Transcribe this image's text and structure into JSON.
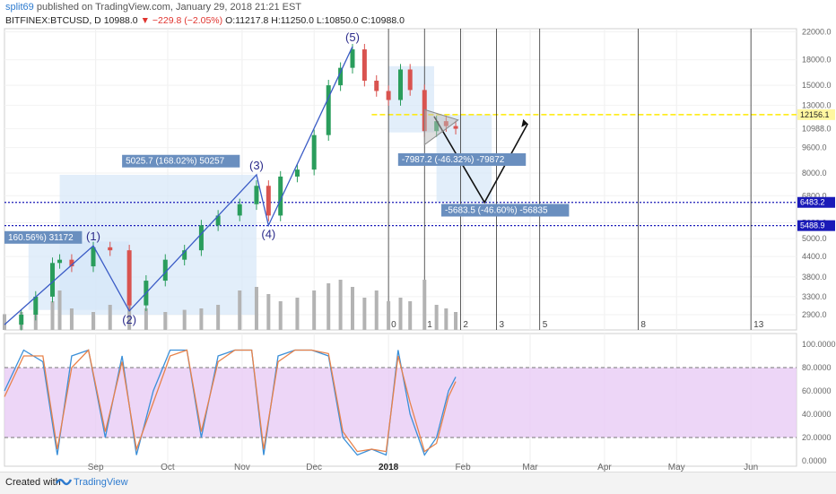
{
  "header": {
    "username": "split69",
    "published": "published on TradingView.com, January 29, 2018 21:21 EST",
    "symbol": "BITFINEX:BTCUSD, D",
    "last": "10988.0",
    "change": "−229.8 (−2.05%)",
    "ohlc": "O:11217.8 H:11250.0 L:10850.0 C:10988.0"
  },
  "footer": {
    "created_with": "Created with",
    "brand": "TradingView"
  },
  "colors": {
    "candle_up": "#2a9d5c",
    "candle_down": "#d9534f",
    "volume": "#b3b3b3",
    "wave": "#3a5bc6",
    "zone_fill": "#d6e7f8",
    "highlight_yellow": "#ffea00",
    "stoch_k": "#3a8fd8",
    "stoch_d": "#e8824a",
    "stoch_band": "#e8ccf5",
    "label_bg": "#6a8fbf",
    "level_line": "#1a1ab8"
  },
  "chart_data": [
    {
      "type": "line",
      "title": "",
      "y_scale": "log",
      "ylim": [
        2600,
        22500
      ],
      "price_axis_ticks": [
        "22000.0",
        "18000.0",
        "15000.0",
        "13000.0",
        "10988.0",
        "9600.0",
        "8000.0",
        "6800.0",
        "5600.0",
        "5000.0",
        "4400.0",
        "3800.0",
        "3300.0",
        "2900.0"
      ],
      "x_axis_ticks": [
        "Sep",
        "Oct",
        "Nov",
        "Dec",
        "2018",
        "Feb",
        "Mar",
        "Apr",
        "May",
        "Jun"
      ],
      "series": [
        {
          "kind": "close",
          "x": [
            "2017-07-25",
            "2017-08-01",
            "2017-08-07",
            "2017-08-14",
            "2017-08-17",
            "2017-08-22",
            "2017-08-31",
            "2017-09-07",
            "2017-09-15",
            "2017-09-22",
            "2017-09-30",
            "2017-10-08",
            "2017-10-15",
            "2017-10-22",
            "2017-10-31",
            "2017-11-07",
            "2017-11-12",
            "2017-11-17",
            "2017-11-24",
            "2017-12-01",
            "2017-12-07",
            "2017-12-12",
            "2017-12-17",
            "2017-12-22",
            "2017-12-27",
            "2018-01-01",
            "2018-01-06",
            "2018-01-10",
            "2018-01-16",
            "2018-01-21",
            "2018-01-25",
            "2018-01-29"
          ],
          "values": [
            2700,
            2900,
            3300,
            4200,
            4300,
            4100,
            4700,
            4600,
            3100,
            3700,
            4300,
            4600,
            5500,
            5900,
            6400,
            7300,
            5900,
            7800,
            8200,
            10500,
            15000,
            17000,
            19400,
            15500,
            14400,
            13500,
            16800,
            14500,
            10800,
            11600,
            11200,
            10988
          ]
        }
      ],
      "volume_relative": [
        0.22,
        0.25,
        0.28,
        0.4,
        0.55,
        0.3,
        0.25,
        0.35,
        0.45,
        0.3,
        0.25,
        0.28,
        0.3,
        0.35,
        0.55,
        0.6,
        0.5,
        0.4,
        0.45,
        0.55,
        0.65,
        0.7,
        0.6,
        0.45,
        0.55,
        0.4,
        0.45,
        0.4,
        0.7,
        0.35,
        0.3,
        0.25
      ],
      "levels": [
        {
          "value": 12156.1,
          "label": "12156.1",
          "style": "yellow"
        },
        {
          "value": 6483.2,
          "label": "6483.2",
          "style": "blue-dotted"
        },
        {
          "value": 5488.9,
          "label": "5488.9",
          "style": "blue-dotted"
        }
      ],
      "wave_labels": [
        {
          "label": "(1)",
          "date": "2017-08-31",
          "price": 4750
        },
        {
          "label": "(2)",
          "date": "2017-09-15",
          "price": 2980
        },
        {
          "label": "(3)",
          "date": "2017-11-07",
          "price": 7900
        },
        {
          "label": "(4)",
          "date": "2017-11-12",
          "price": 5500
        },
        {
          "label": "(5)",
          "date": "2017-12-17",
          "price": 19800
        }
      ],
      "measure_labels": [
        "160.56%) 31172",
        "5025.7 (168.02%) 50257",
        "-7987.2 (-46.32%) -79872",
        "-5683.5 (-46.60%) -56835"
      ],
      "fib_time_labels": [
        "0",
        "1",
        "2",
        "3",
        "5",
        "8",
        "13"
      ]
    },
    {
      "type": "line",
      "title": "",
      "ylim": [
        0,
        100
      ],
      "axis_ticks": [
        "100.0000",
        "80.0000",
        "60.0000",
        "40.0000",
        "20.0000",
        "0.0000"
      ],
      "band": [
        20,
        80
      ],
      "series": [
        {
          "kind": "stoch_k",
          "x": [
            "2017-07-25",
            "2017-08-02",
            "2017-08-10",
            "2017-08-16",
            "2017-08-22",
            "2017-08-29",
            "2017-09-05",
            "2017-09-12",
            "2017-09-18",
            "2017-09-25",
            "2017-10-02",
            "2017-10-09",
            "2017-10-15",
            "2017-10-22",
            "2017-10-29",
            "2017-11-05",
            "2017-11-10",
            "2017-11-16",
            "2017-11-23",
            "2017-11-30",
            "2017-12-07",
            "2017-12-13",
            "2017-12-19",
            "2017-12-25",
            "2017-12-31",
            "2018-01-05",
            "2018-01-10",
            "2018-01-16",
            "2018-01-21",
            "2018-01-26",
            "2018-01-29"
          ],
          "values": [
            60,
            95,
            85,
            5,
            90,
            95,
            20,
            90,
            5,
            60,
            95,
            95,
            20,
            90,
            95,
            95,
            5,
            90,
            95,
            95,
            90,
            20,
            5,
            10,
            5,
            95,
            40,
            5,
            20,
            60,
            72
          ]
        },
        {
          "kind": "stoch_d",
          "x": [
            "2017-07-25",
            "2017-08-02",
            "2017-08-10",
            "2017-08-16",
            "2017-08-22",
            "2017-08-29",
            "2017-09-05",
            "2017-09-12",
            "2017-09-18",
            "2017-09-25",
            "2017-10-02",
            "2017-10-09",
            "2017-10-15",
            "2017-10-22",
            "2017-10-29",
            "2017-11-05",
            "2017-11-10",
            "2017-11-16",
            "2017-11-23",
            "2017-11-30",
            "2017-12-07",
            "2017-12-13",
            "2017-12-19",
            "2017-12-25",
            "2017-12-31",
            "2018-01-05",
            "2018-01-10",
            "2018-01-16",
            "2018-01-21",
            "2018-01-26",
            "2018-01-29"
          ],
          "values": [
            55,
            90,
            90,
            10,
            80,
            95,
            25,
            85,
            10,
            50,
            90,
            95,
            25,
            85,
            95,
            95,
            10,
            85,
            95,
            95,
            92,
            25,
            8,
            10,
            8,
            90,
            50,
            8,
            15,
            55,
            68
          ]
        }
      ]
    }
  ]
}
